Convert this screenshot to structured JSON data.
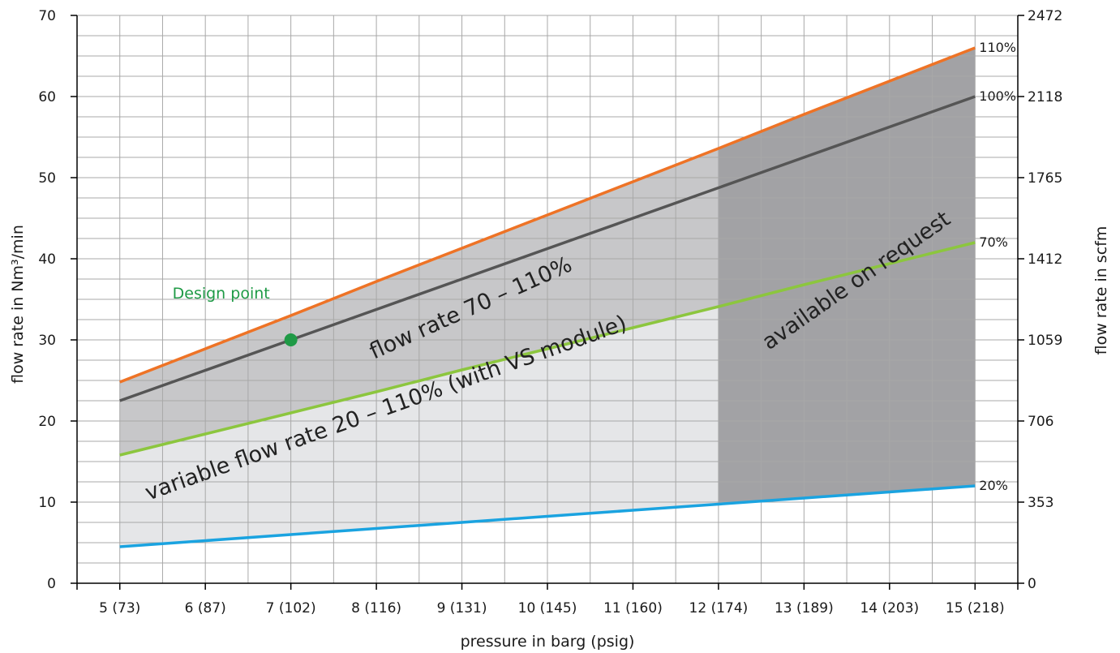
{
  "chart_data": {
    "type": "line",
    "title": "",
    "xlabel": "pressure in barg (psig)",
    "ylabel": "flow rate in Nm³/min",
    "ylabel_right": "flow rate in scfm",
    "x": [
      5,
      6,
      7,
      8,
      9,
      10,
      11,
      12,
      13,
      14,
      15
    ],
    "x_tick_labels": [
      "5 (73)",
      "6 (87)",
      "7 (102)",
      "8 (116)",
      "9 (131)",
      "10 (145)",
      "11 (160)",
      "12 (174)",
      "13 (189)",
      "14 (203)",
      "15 (218)"
    ],
    "xlim": [
      4.5,
      15.5
    ],
    "ylim": [
      0,
      70
    ],
    "y_ticks": [
      0,
      10,
      20,
      30,
      40,
      50,
      60,
      70
    ],
    "y_ticks_right": [
      {
        "value": 0,
        "label": "0"
      },
      {
        "value": 10,
        "label": "353"
      },
      {
        "value": 20,
        "label": "706"
      },
      {
        "value": 30,
        "label": "1059"
      },
      {
        "value": 40,
        "label": "1412"
      },
      {
        "value": 50,
        "label": "1765"
      },
      {
        "value": 60,
        "label": "2118"
      },
      {
        "value": 70,
        "label": "2472"
      }
    ],
    "grid": true,
    "series": [
      {
        "name": "110%",
        "color": "#ee7326",
        "values": [
          24.8,
          28.9,
          33.0,
          37.2,
          41.3,
          45.4,
          49.5,
          53.6,
          57.8,
          61.9,
          66.0
        ]
      },
      {
        "name": "100%",
        "color": "#555555",
        "values": [
          22.5,
          26.25,
          30.0,
          33.75,
          37.5,
          41.25,
          45.0,
          48.75,
          52.5,
          56.25,
          60.0
        ]
      },
      {
        "name": "70%",
        "color": "#8cc63e",
        "values": [
          15.8,
          18.4,
          21.0,
          23.6,
          26.3,
          28.9,
          31.5,
          34.1,
          36.8,
          39.4,
          42.0
        ]
      },
      {
        "name": "20%",
        "color": "#1aa3e0",
        "values": [
          4.5,
          5.25,
          6.0,
          6.75,
          7.5,
          8.25,
          9.0,
          9.75,
          10.5,
          11.25,
          12.0
        ]
      }
    ],
    "regions": [
      {
        "label": "variable flow rate 20 – 110% (with VS module)",
        "color": "#e5e6e8",
        "from_series": "20%",
        "to_series": "110%",
        "x_range": [
          5,
          12
        ]
      },
      {
        "label": "flow rate 70 – 110%",
        "color": "#c7c7c9",
        "from_series": "70%",
        "to_series": "110%",
        "x_range": [
          5,
          12
        ]
      },
      {
        "label": "available on request",
        "color": "#a2a2a5",
        "from_series": "20%",
        "to_series": "110%",
        "x_range": [
          12,
          15
        ]
      }
    ],
    "annotations": [
      {
        "label": "Design point",
        "x": 7,
        "y": 30,
        "color": "#1f9a46"
      }
    ]
  }
}
